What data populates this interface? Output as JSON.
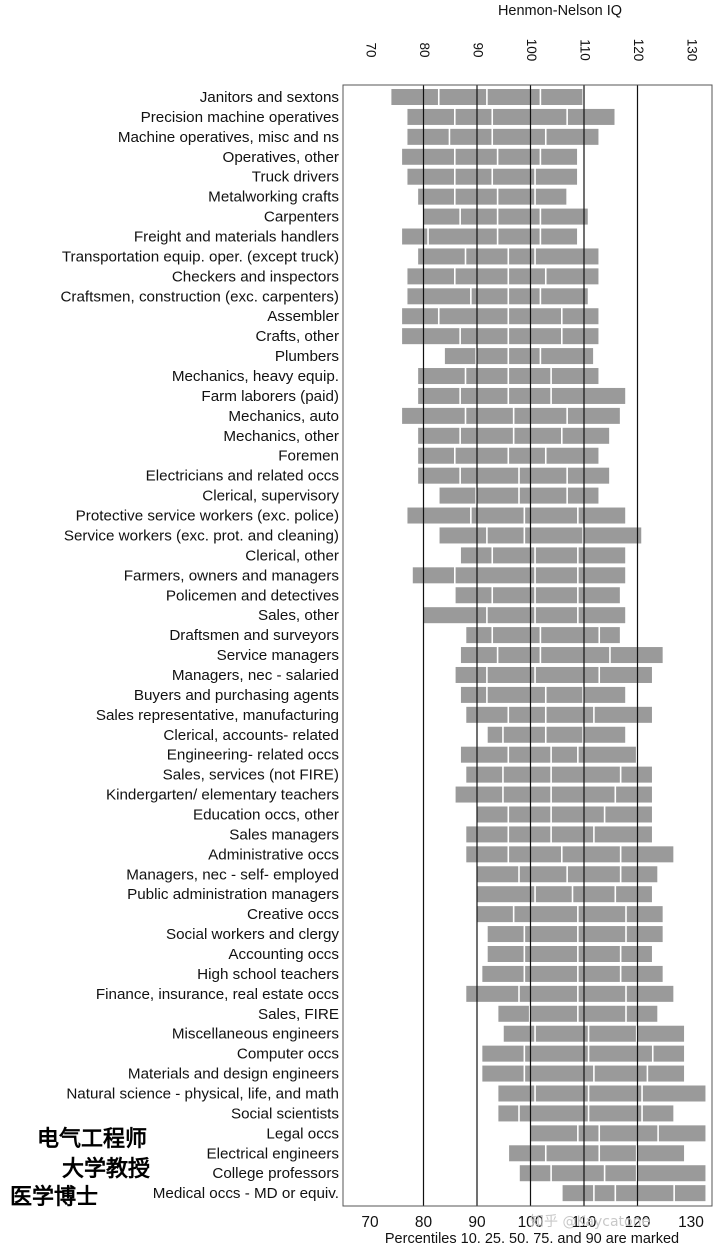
{
  "chart_data": {
    "type": "bar",
    "orientation": "horizontal",
    "subtype": "percentile-range",
    "title": "",
    "xlabel": "Henmon-Nelson IQ",
    "xlabel_position": "top",
    "footnote": "Percentiles 10, 25, 50, 75, and 90 are marked",
    "xlim": [
      70,
      130
    ],
    "xticks": [
      70,
      80,
      90,
      100,
      110,
      120,
      130
    ],
    "grid_x": [
      80,
      90,
      100,
      110,
      120
    ],
    "categories": [
      "Janitors and sextons",
      "Precision machine operatives",
      "Machine operatives, misc and ns",
      "Operatives, other",
      "Truck drivers",
      "Metalworking crafts",
      "Carpenters",
      "Freight and materials handlers",
      "Transportation equip. oper. (except truck)",
      "Checkers and inspectors",
      "Craftsmen, construction (exc. carpenters)",
      "Assembler",
      "Crafts, other",
      "Plumbers",
      "Mechanics, heavy equip.",
      "Farm laborers (paid)",
      "Mechanics, auto",
      "Mechanics, other",
      "Foremen",
      "Electricians and related occs",
      "Clerical, supervisory",
      "Protective service workers (exc. police)",
      "Service workers (exc. prot. and cleaning)",
      "Clerical, other",
      "Farmers, owners and managers",
      "Policemen and detectives",
      "Sales, other",
      "Draftsmen and surveyors",
      "Service managers",
      "Managers, nec - salaried",
      "Buyers and purchasing agents",
      "Sales representative, manufacturing",
      "Clerical, accounts- related",
      "Engineering- related occs",
      "Sales, services (not FIRE)",
      "Kindergarten/ elementary teachers",
      "Education occs, other",
      "Sales managers",
      "Administrative occs",
      "Managers, nec - self- employed",
      "Public administration managers",
      "Creative occs",
      "Social workers and clergy",
      "Accounting occs",
      "High school teachers",
      "Finance, insurance, real estate occs",
      "Sales, FIRE",
      "Miscellaneous engineers",
      "Computer occs",
      "Materials and design engineers",
      "Natural science - physical, life, and math",
      "Social scientists",
      "Legal occs",
      "Electrical engineers",
      "College professors",
      "Medical occs - MD or equiv."
    ],
    "percentiles": [
      10,
      25,
      50,
      75,
      90
    ],
    "values": [
      [
        74,
        83,
        92,
        102,
        110
      ],
      [
        77,
        86,
        93,
        107,
        116
      ],
      [
        77,
        85,
        93,
        103,
        113
      ],
      [
        76,
        86,
        94,
        102,
        109
      ],
      [
        77,
        86,
        93,
        101,
        109
      ],
      [
        79,
        86,
        94,
        101,
        107
      ],
      [
        80,
        87,
        94,
        102,
        111
      ],
      [
        76,
        81,
        94,
        102,
        109
      ],
      [
        79,
        88,
        96,
        101,
        113
      ],
      [
        77,
        86,
        96,
        103,
        113
      ],
      [
        77,
        89,
        96,
        102,
        111
      ],
      [
        76,
        83,
        96,
        106,
        113
      ],
      [
        76,
        87,
        96,
        106,
        113
      ],
      [
        84,
        90,
        96,
        102,
        112
      ],
      [
        79,
        88,
        96,
        104,
        113
      ],
      [
        79,
        87,
        96,
        104,
        118
      ],
      [
        76,
        88,
        97,
        107,
        117
      ],
      [
        79,
        87,
        97,
        106,
        115
      ],
      [
        79,
        86,
        96,
        103,
        113
      ],
      [
        79,
        87,
        98,
        107,
        115
      ],
      [
        83,
        90,
        98,
        107,
        113
      ],
      [
        77,
        89,
        99,
        109,
        118
      ],
      [
        83,
        92,
        99,
        110,
        121
      ],
      [
        87,
        93,
        101,
        109,
        118
      ],
      [
        78,
        86,
        101,
        109,
        118
      ],
      [
        86,
        93,
        101,
        109,
        117
      ],
      [
        80,
        92,
        101,
        109,
        118
      ],
      [
        88,
        93,
        102,
        113,
        117
      ],
      [
        87,
        94,
        102,
        115,
        125
      ],
      [
        86,
        92,
        101,
        113,
        123
      ],
      [
        87,
        92,
        103,
        110,
        118
      ],
      [
        88,
        96,
        103,
        112,
        123
      ],
      [
        92,
        95,
        103,
        110,
        118
      ],
      [
        87,
        96,
        104,
        109,
        120
      ],
      [
        88,
        95,
        104,
        117,
        123
      ],
      [
        86,
        95,
        104,
        116,
        123
      ],
      [
        90,
        96,
        104,
        114,
        123
      ],
      [
        88,
        96,
        104,
        112,
        123
      ],
      [
        88,
        96,
        106,
        117,
        127
      ],
      [
        90,
        98,
        107,
        117,
        124
      ],
      [
        90,
        101,
        108,
        116,
        123
      ],
      [
        90,
        97,
        109,
        118,
        125
      ],
      [
        92,
        99,
        109,
        118,
        125
      ],
      [
        92,
        99,
        109,
        117,
        123
      ],
      [
        91,
        99,
        109,
        117,
        125
      ],
      [
        88,
        98,
        109,
        118,
        127
      ],
      [
        94,
        100,
        109,
        118,
        124
      ],
      [
        95,
        101,
        111,
        120,
        129
      ],
      [
        91,
        99,
        111,
        123,
        129
      ],
      [
        91,
        99,
        112,
        122,
        129
      ],
      [
        94,
        101,
        111,
        121,
        133
      ],
      [
        94,
        98,
        111,
        121,
        127
      ],
      [
        100,
        109,
        113,
        124,
        133
      ],
      [
        96,
        103,
        113,
        120,
        129
      ],
      [
        98,
        104,
        114,
        120,
        133
      ],
      [
        106,
        112,
        116,
        127,
        133
      ]
    ]
  },
  "annotations": {
    "cn_electrical_engineer": "电气工程师",
    "cn_college_professor": "大学教授",
    "cn_medical_doctor": "医学博士"
  },
  "watermark": "知乎 @Kaycatone"
}
